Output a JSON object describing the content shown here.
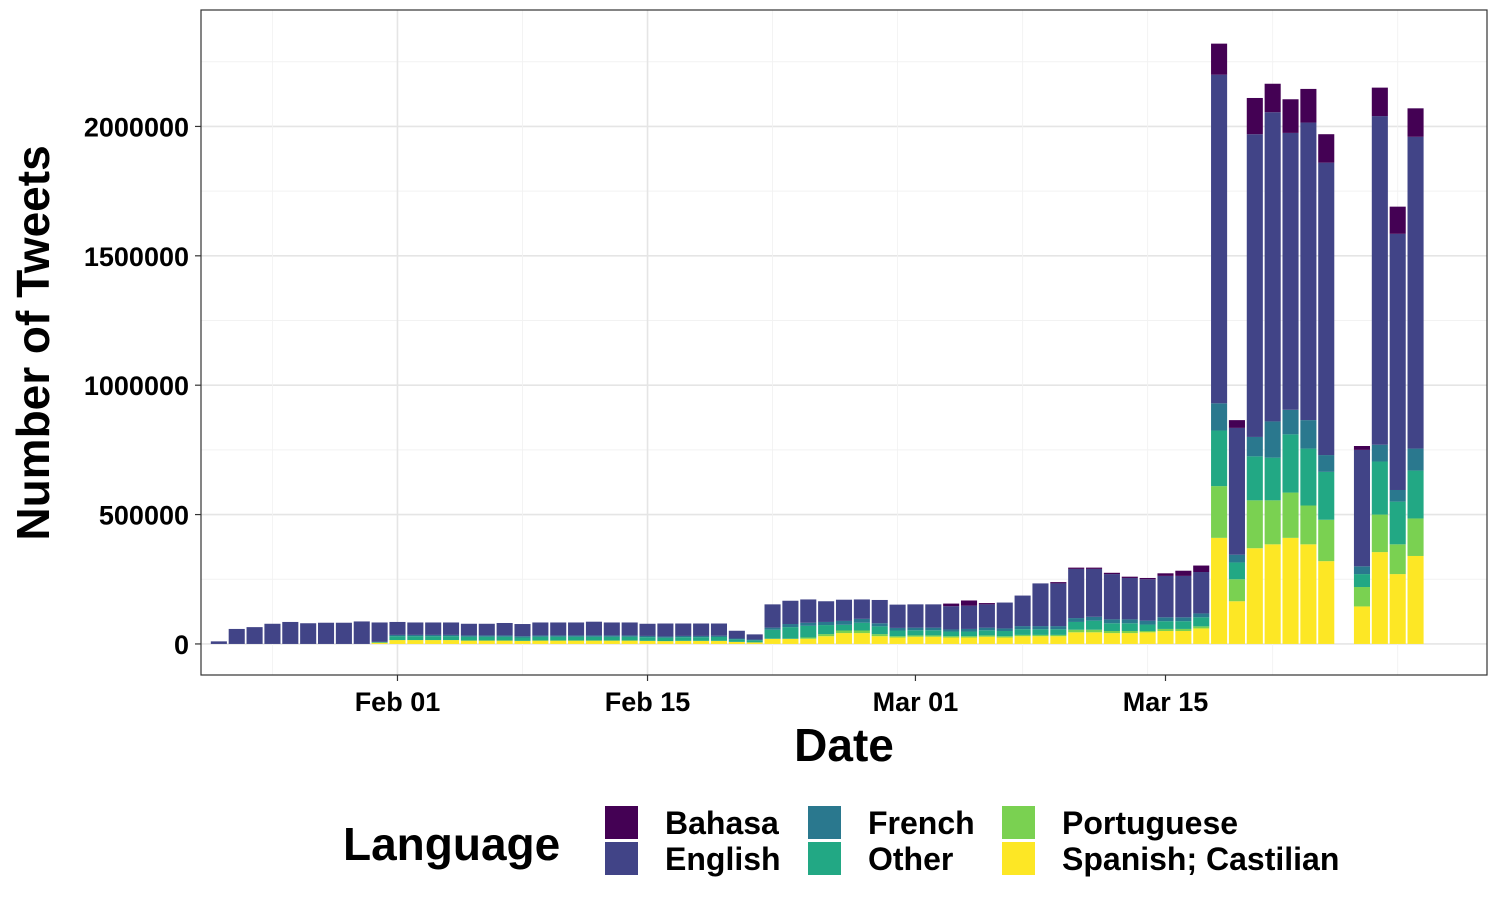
{
  "chart_data": {
    "type": "bar",
    "stacked": true,
    "xlabel": "Date",
    "ylabel": "Number of Tweets",
    "ylim": [
      -120000,
      2450000
    ],
    "xlim": [
      "2020-01-21",
      "2020-04-02"
    ],
    "yticks": [
      0,
      500000,
      1000000,
      1500000,
      2000000
    ],
    "ytick_labels": [
      "0",
      "500000",
      "1000000",
      "1500000",
      "2000000"
    ],
    "xticks": [
      "2020-02-01",
      "2020-02-15",
      "2020-03-01",
      "2020-03-15"
    ],
    "xtick_labels": [
      "Feb 01",
      "Feb 15",
      "Mar 01",
      "Mar 15"
    ],
    "grid": true,
    "legend": {
      "title": "Language",
      "position": "bottom",
      "entries": [
        "Bahasa",
        "English",
        "French",
        "Other",
        "Portuguese",
        "Spanish; Castilian"
      ]
    },
    "colors": {
      "Spanish; Castilian": "#FDE725",
      "Portuguese": "#7AD151",
      "Other": "#22A884",
      "French": "#2A788E",
      "English": "#414487",
      "Bahasa": "#440154"
    },
    "stack_order": [
      "Spanish; Castilian",
      "Portuguese",
      "Other",
      "French",
      "English",
      "Bahasa"
    ],
    "x": [
      "2020-01-22",
      "2020-01-23",
      "2020-01-24",
      "2020-01-25",
      "2020-01-26",
      "2020-01-27",
      "2020-01-28",
      "2020-01-29",
      "2020-01-30",
      "2020-01-31",
      "2020-02-01",
      "2020-02-02",
      "2020-02-03",
      "2020-02-04",
      "2020-02-05",
      "2020-02-06",
      "2020-02-07",
      "2020-02-08",
      "2020-02-09",
      "2020-02-10",
      "2020-02-11",
      "2020-02-12",
      "2020-02-13",
      "2020-02-14",
      "2020-02-15",
      "2020-02-16",
      "2020-02-17",
      "2020-02-18",
      "2020-02-19",
      "2020-02-20",
      "2020-02-21",
      "2020-02-22",
      "2020-02-23",
      "2020-02-24",
      "2020-02-25",
      "2020-02-26",
      "2020-02-27",
      "2020-02-28",
      "2020-02-29",
      "2020-03-01",
      "2020-03-02",
      "2020-03-03",
      "2020-03-04",
      "2020-03-05",
      "2020-03-06",
      "2020-03-07",
      "2020-03-08",
      "2020-03-09",
      "2020-03-10",
      "2020-03-11",
      "2020-03-12",
      "2020-03-13",
      "2020-03-14",
      "2020-03-15",
      "2020-03-16",
      "2020-03-17",
      "2020-03-18",
      "2020-03-19",
      "2020-03-20",
      "2020-03-21",
      "2020-03-22",
      "2020-03-23",
      "2020-03-24",
      "2020-03-25",
      "2020-03-26",
      "2020-03-27",
      "2020-03-28",
      "2020-03-29"
    ],
    "series": [
      {
        "name": "Spanish; Castilian",
        "values": [
          0,
          0,
          0,
          0,
          0,
          0,
          0,
          0,
          0,
          5000,
          15000,
          15000,
          15000,
          15000,
          13000,
          13000,
          13000,
          12000,
          13000,
          13000,
          13000,
          13000,
          13000,
          13000,
          12000,
          11000,
          12000,
          12000,
          12000,
          8000,
          6000,
          20000,
          20000,
          20000,
          30000,
          42000,
          42000,
          30000,
          25000,
          28000,
          28000,
          25000,
          25000,
          28000,
          25000,
          30000,
          30000,
          30000,
          45000,
          45000,
          42000,
          42000,
          45000,
          50000,
          50000,
          60000,
          410000,
          165000,
          370000,
          385000,
          410000,
          385000,
          320000,
          0,
          145000,
          355000,
          270000,
          340000
        ]
      },
      {
        "name": "Portuguese",
        "values": [
          0,
          0,
          0,
          0,
          0,
          0,
          0,
          0,
          0,
          0,
          0,
          0,
          0,
          0,
          0,
          0,
          0,
          0,
          0,
          0,
          0,
          0,
          0,
          0,
          0,
          0,
          0,
          0,
          0,
          0,
          0,
          0,
          0,
          5000,
          8000,
          10000,
          10000,
          8000,
          5000,
          5000,
          5000,
          5000,
          5000,
          5000,
          5000,
          5000,
          5000,
          5000,
          10000,
          10000,
          8000,
          8000,
          5000,
          8000,
          8000,
          8000,
          200000,
          85000,
          185000,
          170000,
          175000,
          150000,
          160000,
          0,
          75000,
          145000,
          115000,
          145000
        ]
      },
      {
        "name": "Other",
        "values": [
          0,
          0,
          0,
          0,
          0,
          0,
          0,
          0,
          0,
          3000,
          15000,
          15000,
          15000,
          15000,
          15000,
          15000,
          15000,
          13000,
          15000,
          15000,
          15000,
          15000,
          15000,
          15000,
          14000,
          13000,
          14000,
          14000,
          15000,
          10000,
          8000,
          35000,
          45000,
          45000,
          35000,
          22000,
          30000,
          30000,
          22000,
          20000,
          20000,
          18000,
          18000,
          20000,
          20000,
          22000,
          22000,
          22000,
          30000,
          35000,
          30000,
          30000,
          25000,
          30000,
          30000,
          35000,
          215000,
          65000,
          170000,
          165000,
          225000,
          220000,
          185000,
          0,
          50000,
          205000,
          165000,
          185000
        ]
      },
      {
        "name": "French",
        "values": [
          0,
          0,
          0,
          0,
          0,
          0,
          0,
          0,
          0,
          0,
          5000,
          5000,
          5000,
          5000,
          5000,
          5000,
          5000,
          5000,
          5000,
          5000,
          5000,
          5000,
          5000,
          5000,
          5000,
          5000,
          5000,
          5000,
          5000,
          3000,
          3000,
          8000,
          12000,
          12000,
          12000,
          15000,
          15000,
          12000,
          10000,
          10000,
          10000,
          8000,
          10000,
          10000,
          10000,
          12000,
          12000,
          12000,
          15000,
          15000,
          15000,
          15000,
          15000,
          15000,
          15000,
          15000,
          105000,
          30000,
          75000,
          140000,
          95000,
          110000,
          65000,
          0,
          30000,
          65000,
          45000,
          85000
        ]
      },
      {
        "name": "English",
        "values": [
          10000,
          58000,
          65000,
          78000,
          85000,
          80000,
          82000,
          82000,
          87000,
          75000,
          50000,
          48000,
          48000,
          48000,
          45000,
          45000,
          48000,
          47000,
          50000,
          50000,
          50000,
          53000,
          50000,
          50000,
          47000,
          50000,
          48000,
          48000,
          47000,
          30000,
          20000,
          90000,
          90000,
          90000,
          80000,
          82000,
          75000,
          90000,
          90000,
          90000,
          90000,
          90000,
          90000,
          90000,
          100000,
          118000,
          165000,
          165000,
          190000,
          185000,
          175000,
          160000,
          160000,
          160000,
          160000,
          160000,
          1270000,
          490000,
          1170000,
          1195000,
          1070000,
          1150000,
          1130000,
          0,
          450000,
          1270000,
          990000,
          1205000
        ]
      },
      {
        "name": "Bahasa",
        "values": [
          0,
          0,
          0,
          0,
          0,
          0,
          0,
          0,
          0,
          0,
          0,
          0,
          0,
          0,
          0,
          0,
          0,
          0,
          0,
          0,
          0,
          0,
          0,
          0,
          0,
          0,
          0,
          0,
          0,
          0,
          0,
          0,
          0,
          0,
          0,
          0,
          0,
          0,
          0,
          0,
          0,
          10000,
          20000,
          5000,
          0,
          0,
          0,
          5000,
          5000,
          5000,
          5000,
          5000,
          5000,
          10000,
          20000,
          25000,
          120000,
          30000,
          140000,
          110000,
          130000,
          130000,
          110000,
          0,
          15000,
          110000,
          105000,
          110000
        ]
      }
    ]
  }
}
